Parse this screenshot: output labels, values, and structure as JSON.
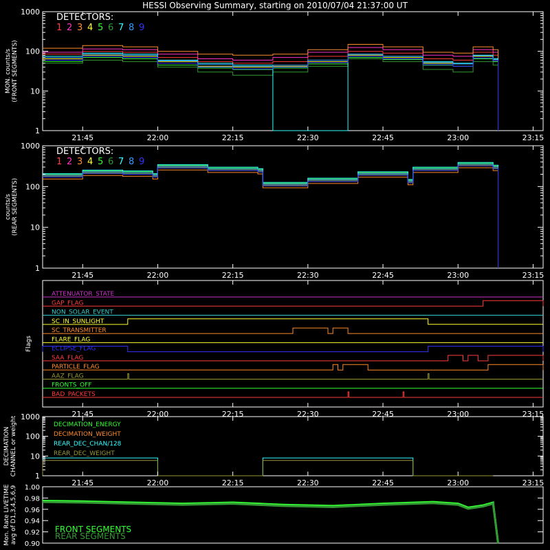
{
  "page": {
    "title": "HESSI Observing Summary, starting on 2010/07/04 21:37:00 UT"
  },
  "colors": {
    "background": "#000000",
    "axes": "#ffffff",
    "detectors": [
      "#ff3b3b",
      "#ff33c8",
      "#ff8c2a",
      "#ffff33",
      "#33ff33",
      "#339933",
      "#33ffff",
      "#3399ff",
      "#3333ff"
    ],
    "flags": {
      "ATTENUATOR_STATE": "#cc33cc",
      "GAP_FLAG": "#ff3b3b",
      "NON_SOLAR_EVENT": "#33cccc",
      "SC_IN_SUNLIGHT": "#ffff33",
      "SC_TRANSMITTER": "#ff8c2a",
      "FLARE_FLAG": "#ffff33",
      "ECLIPSE_FLAG": "#3333ff",
      "SAA_FLAG": "#ff3b3b",
      "PARTICLE_FLAG": "#ff8c2a",
      "AAZ_FLAG": "#999933",
      "FRONTS_OFF": "#33ff33",
      "BAD_PACKETS": "#ff3b3b"
    },
    "decimation": [
      "#33ff33",
      "#ff8c2a",
      "#33ffff",
      "#999933"
    ],
    "livetime": [
      "#33ff33",
      "#339933"
    ]
  },
  "chart_data": [
    {
      "type": "line",
      "title": "HESSI Observing Summary, starting on 2010/07/04 21:37:00 UT",
      "ylabel": [
        "MON. counts/s",
        "(FRONT SEGMENTS)"
      ],
      "yscale": "log",
      "ylim": [
        1,
        1000
      ],
      "ytick_labels": [
        "1",
        "10",
        "100",
        "1000"
      ],
      "xlim": [
        "21:37",
        "23:17"
      ],
      "xtick_labels": [
        "21:45",
        "22:00",
        "22:15",
        "22:30",
        "22:45",
        "23:00",
        "23:15"
      ],
      "legend_title": "DETECTORS:",
      "legend_entries": [
        "1",
        "2",
        "3",
        "4",
        "5",
        "6",
        "7",
        "8",
        "9"
      ],
      "legend_position": "top-left",
      "x": [
        "21:37",
        "21:45",
        "21:53",
        "22:00",
        "22:08",
        "22:15",
        "22:23",
        "22:30",
        "22:38",
        "22:45",
        "22:53",
        "22:59",
        "23:03",
        "23:07",
        "23:08"
      ],
      "series": [
        {
          "name": "1",
          "values": [
            85,
            100,
            95,
            70,
            55,
            50,
            55,
            75,
            100,
            90,
            65,
            60,
            95,
            80,
            1
          ]
        },
        {
          "name": "2",
          "values": [
            95,
            115,
            110,
            85,
            65,
            60,
            70,
            95,
            125,
            110,
            80,
            75,
            110,
            95,
            1
          ]
        },
        {
          "name": "3",
          "values": [
            120,
            140,
            130,
            100,
            85,
            80,
            85,
            110,
            150,
            130,
            95,
            90,
            130,
            110,
            1
          ]
        },
        {
          "name": "4",
          "values": [
            65,
            80,
            75,
            55,
            42,
            40,
            42,
            55,
            80,
            70,
            50,
            48,
            75,
            62,
            1
          ]
        },
        {
          "name": "5",
          "values": [
            55,
            70,
            65,
            45,
            38,
            35,
            38,
            48,
            70,
            62,
            45,
            42,
            65,
            55,
            1
          ]
        },
        {
          "name": "6",
          "values": [
            50,
            60,
            55,
            40,
            30,
            25,
            30,
            42,
            65,
            55,
            35,
            30,
            55,
            45,
            1
          ]
        },
        {
          "name": "7",
          "values": [
            75,
            90,
            85,
            60,
            50,
            45,
            1,
            1,
            85,
            75,
            55,
            50,
            80,
            65,
            1
          ]
        },
        {
          "name": "8",
          "values": [
            70,
            85,
            80,
            58,
            47,
            42,
            45,
            60,
            85,
            75,
            52,
            48,
            78,
            62,
            1
          ]
        },
        {
          "name": "9",
          "values": [
            60,
            75,
            70,
            50,
            40,
            36,
            40,
            52,
            75,
            65,
            46,
            42,
            68,
            58,
            1
          ]
        }
      ]
    },
    {
      "type": "line",
      "ylabel": [
        "counts/s",
        "(REAR SEGMENTS)"
      ],
      "yscale": "log",
      "ylim": [
        1,
        1000
      ],
      "ytick_labels": [
        "1",
        "10",
        "100",
        "1000"
      ],
      "xlim": [
        "21:37",
        "23:17"
      ],
      "xtick_labels": [
        "21:45",
        "22:00",
        "22:15",
        "22:30",
        "22:45",
        "23:00",
        "23:15"
      ],
      "legend_title": "DETECTORS:",
      "legend_entries": [
        "1",
        "2",
        "3",
        "4",
        "5",
        "6",
        "7",
        "8",
        "9"
      ],
      "legend_position": "top-left",
      "x": [
        "21:37",
        "21:45",
        "21:53",
        "21:59",
        "22:00",
        "22:10",
        "22:20",
        "22:21",
        "22:30",
        "22:40",
        "22:50",
        "22:51",
        "23:00",
        "23:07",
        "23:08"
      ],
      "series": [
        {
          "name": "all detectors",
          "values": [
            180,
            220,
            210,
            180,
            300,
            260,
            240,
            110,
            140,
            200,
            130,
            260,
            340,
            290,
            1
          ]
        }
      ]
    },
    {
      "type": "line",
      "ylabel": "Flags",
      "xlim": [
        "21:37",
        "23:17"
      ],
      "xtick_labels": [
        "21:45",
        "22:00",
        "22:15",
        "22:30",
        "22:45",
        "23:00",
        "23:15"
      ],
      "series_labels": [
        "ATTENUATOR_STATE",
        "GAP_FLAG",
        "NON_SOLAR_EVENT",
        "SC_IN_SUNLIGHT",
        "SC_TRANSMITTER",
        "FLARE_FLAG",
        "ECLIPSE_FLAG",
        "SAA_FLAG",
        "PARTICLE_FLAG",
        "AAZ_FLAG",
        "FRONTS_OFF",
        "BAD_PACKETS"
      ],
      "on_intervals": {
        "ATTENUATOR_STATE": [],
        "GAP_FLAG": [
          [
            "23:05",
            "23:17"
          ]
        ],
        "NON_SOLAR_EVENT": [],
        "SC_IN_SUNLIGHT": [
          [
            "21:54",
            "22:54"
          ]
        ],
        "SC_TRANSMITTER": [
          [
            "22:27",
            "22:34"
          ],
          [
            "22:35",
            "22:38"
          ]
        ],
        "FLARE_FLAG": [],
        "ECLIPSE_FLAG": [
          [
            "21:37",
            "21:54"
          ],
          [
            "22:54",
            "23:17"
          ]
        ],
        "SAA_FLAG": [
          [
            "22:58",
            "23:01"
          ],
          [
            "23:02",
            "23:04"
          ],
          [
            "23:06",
            "23:17"
          ]
        ],
        "PARTICLE_FLAG": [
          [
            "22:35",
            "22:36"
          ],
          [
            "22:37",
            "22:42"
          ],
          [
            "23:06",
            "23:17"
          ]
        ],
        "AAZ_FLAG": [
          [
            "21:54",
            "21:54"
          ],
          [
            "22:54",
            "22:54"
          ]
        ],
        "FRONTS_OFF": [],
        "BAD_PACKETS": [
          [
            "22:38",
            "22:38"
          ],
          [
            "22:49",
            "22:49"
          ]
        ]
      }
    },
    {
      "type": "line",
      "ylabel": [
        "DECIMATION",
        "CHANNEL or weight"
      ],
      "yscale": "log",
      "ylim": [
        1,
        1000
      ],
      "ytick_labels": [
        "1",
        "10",
        "100",
        "1000"
      ],
      "xlim": [
        "21:37",
        "23:17"
      ],
      "xtick_labels": [
        "21:45",
        "22:00",
        "22:15",
        "22:30",
        "22:45",
        "23:00",
        "23:15"
      ],
      "legend_entries": [
        "DECIMATION_ENERGY",
        "DECIMATION_WEIGHT",
        "REAR_DEC_CHAN/128",
        "REAR_DEC_WEIGHT"
      ],
      "legend_position": "top-left",
      "series": [
        {
          "name": "REAR_DEC_CHAN/128",
          "segments": [
            [
              "21:37",
              "22:00",
              8
            ],
            [
              "22:21",
              "22:51",
              8
            ]
          ]
        },
        {
          "name": "REAR_DEC_WEIGHT",
          "segments": [
            [
              "21:37",
              "22:00",
              6
            ],
            [
              "22:21",
              "22:51",
              6
            ]
          ]
        }
      ]
    },
    {
      "type": "line",
      "ylabel": [
        "Mon. Rate LIVETIME",
        "avg of D1,3,4,5,6,9"
      ],
      "ylim": [
        0.9,
        1.0
      ],
      "ytick_labels": [
        "0.90",
        "0.92",
        "0.94",
        "0.96",
        "0.98",
        "1.00"
      ],
      "xlim": [
        "21:37",
        "23:17"
      ],
      "legend_entries": [
        "FRONT SEGMENTS",
        "REAR SEGMENTS"
      ],
      "legend_position": "bottom-left",
      "x": [
        "21:37",
        "21:45",
        "21:55",
        "22:05",
        "22:15",
        "22:25",
        "22:35",
        "22:45",
        "22:55",
        "23:00",
        "23:02",
        "23:05",
        "23:07",
        "23:08"
      ],
      "series": [
        {
          "name": "FRONT SEGMENTS",
          "values": [
            0.975,
            0.974,
            0.972,
            0.97,
            0.972,
            0.968,
            0.966,
            0.97,
            0.973,
            0.97,
            0.963,
            0.967,
            0.972,
            0.9
          ]
        },
        {
          "name": "REAR SEGMENTS",
          "values": [
            0.973,
            0.972,
            0.97,
            0.968,
            0.97,
            0.966,
            0.964,
            0.968,
            0.971,
            0.968,
            0.961,
            0.965,
            0.97,
            0.9
          ]
        }
      ]
    }
  ]
}
